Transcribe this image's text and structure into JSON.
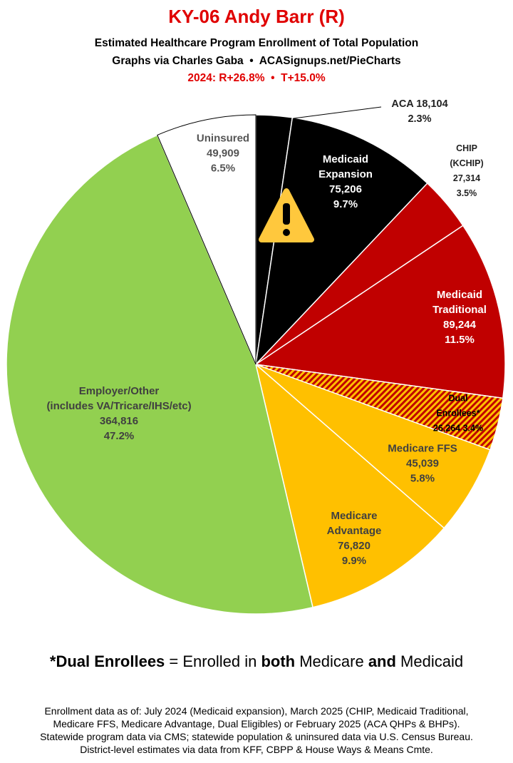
{
  "chart_data": {
    "type": "pie",
    "title": "KY-06 Andy Barr (R)",
    "subtitles": [
      "Estimated Healthcare Program Enrollment of Total Population",
      "Graphs via Charles Gaba  •  ACASignups.net/PieCharts"
    ],
    "election_note": "2024: R+26.8%  •  T+15.0%",
    "categories": [
      "ACA",
      "Medicaid\nExpansion",
      "CHIP (KCHIP)",
      "Medicaid\nTraditional",
      "Dual Enrollees*",
      "Medicare FFS",
      "Medicare\nAdvantage",
      "Employer/Other\n(includes VA/Tricare/IHS/etc)",
      "Uninsured"
    ],
    "values": [
      18104,
      75206,
      27314,
      89244,
      26264,
      45039,
      76820,
      364816,
      49909
    ],
    "value_labels": [
      "18,104",
      "75,206",
      "27,314",
      "89,244",
      "26,264",
      "45,039",
      "76,820",
      "364,816",
      "49,909"
    ],
    "percent_labels": [
      "2.3%",
      "9.7%",
      "3.5%",
      "11.5%",
      "3.4%",
      "5.8%",
      "9.9%",
      "47.2%",
      "6.5%"
    ],
    "colors": [
      "#000000",
      "#000000",
      "#c00000",
      "#c00000",
      "#ffc000",
      "#ffc000",
      "#ffc000",
      "#92d050",
      "#ffffff"
    ],
    "hatched": [
      false,
      false,
      false,
      false,
      true,
      false,
      false,
      false,
      false
    ],
    "hatch_color": "#c00000",
    "footnote_parts": [
      "*Dual Enrollees",
      " = Enrolled in ",
      "both",
      " Medicare ",
      "and",
      " Medicaid"
    ],
    "source_lines": [
      "Enrollment data as of: July 2024 (Medicaid expansion), March 2025 (CHIP, Medicaid Traditional,",
      "Medicare FFS, Medicare Advantage, Dual Eligibles) or February 2025 (ACA QHPs & BHPs).",
      "Statewide program data via CMS; statewide population & uninsured data via U.S. Census Bureau.",
      "District-level estimates via data from KFF, CBPP & House Ways & Means Cmte."
    ]
  }
}
